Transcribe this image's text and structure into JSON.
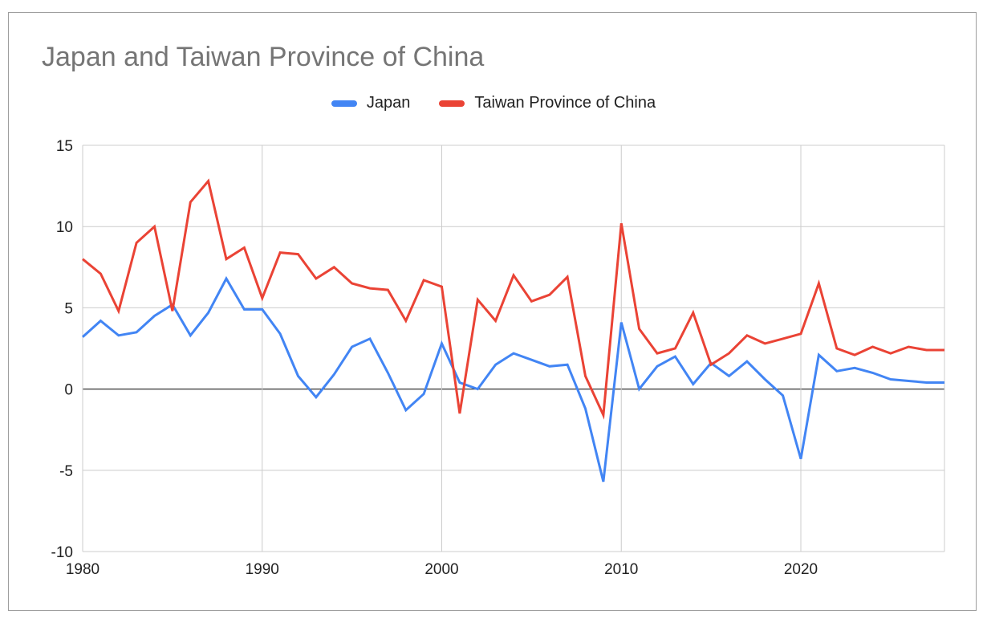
{
  "chart_data": {
    "type": "line",
    "title": "Japan and Taiwan Province of China",
    "xlabel": "",
    "ylabel": "",
    "xlim": [
      1980,
      2028
    ],
    "ylim": [
      -10,
      15
    ],
    "y_ticks": [
      15,
      10,
      5,
      0,
      -5,
      -10
    ],
    "x_ticks": [
      1980,
      1990,
      2000,
      2010,
      2020
    ],
    "grid": true,
    "legend_position": "top-center",
    "x": [
      1980,
      1981,
      1982,
      1983,
      1984,
      1985,
      1986,
      1987,
      1988,
      1989,
      1990,
      1991,
      1992,
      1993,
      1994,
      1995,
      1996,
      1997,
      1998,
      1999,
      2000,
      2001,
      2002,
      2003,
      2004,
      2005,
      2006,
      2007,
      2008,
      2009,
      2010,
      2011,
      2012,
      2013,
      2014,
      2015,
      2016,
      2017,
      2018,
      2019,
      2020,
      2021,
      2022,
      2023,
      2024,
      2025,
      2026,
      2027,
      2028
    ],
    "series": [
      {
        "name": "Japan",
        "color": "#4285f4",
        "values": [
          3.2,
          4.2,
          3.3,
          3.5,
          4.5,
          5.2,
          3.3,
          4.7,
          6.8,
          4.9,
          4.9,
          3.4,
          0.8,
          -0.5,
          0.9,
          2.6,
          3.1,
          1.0,
          -1.3,
          -0.3,
          2.8,
          0.4,
          0.0,
          1.5,
          2.2,
          1.8,
          1.4,
          1.5,
          -1.2,
          -5.7,
          4.1,
          0.0,
          1.4,
          2.0,
          0.3,
          1.6,
          0.8,
          1.7,
          0.6,
          -0.4,
          -4.3,
          2.1,
          1.1,
          1.3,
          1.0,
          0.6,
          0.5,
          0.4,
          0.4
        ]
      },
      {
        "name": "Taiwan Province of China",
        "color": "#ea4335",
        "values": [
          8.0,
          7.1,
          4.8,
          9.0,
          10.0,
          4.8,
          11.5,
          12.8,
          8.0,
          8.7,
          5.6,
          8.4,
          8.3,
          6.8,
          7.5,
          6.5,
          6.2,
          6.1,
          4.2,
          6.7,
          6.3,
          -1.5,
          5.5,
          4.2,
          7.0,
          5.4,
          5.8,
          6.9,
          0.8,
          -1.6,
          10.2,
          3.7,
          2.2,
          2.5,
          4.7,
          1.5,
          2.2,
          3.3,
          2.8,
          3.1,
          3.4,
          6.5,
          2.5,
          2.1,
          2.6,
          2.2,
          2.6,
          2.4,
          2.4
        ]
      }
    ]
  }
}
